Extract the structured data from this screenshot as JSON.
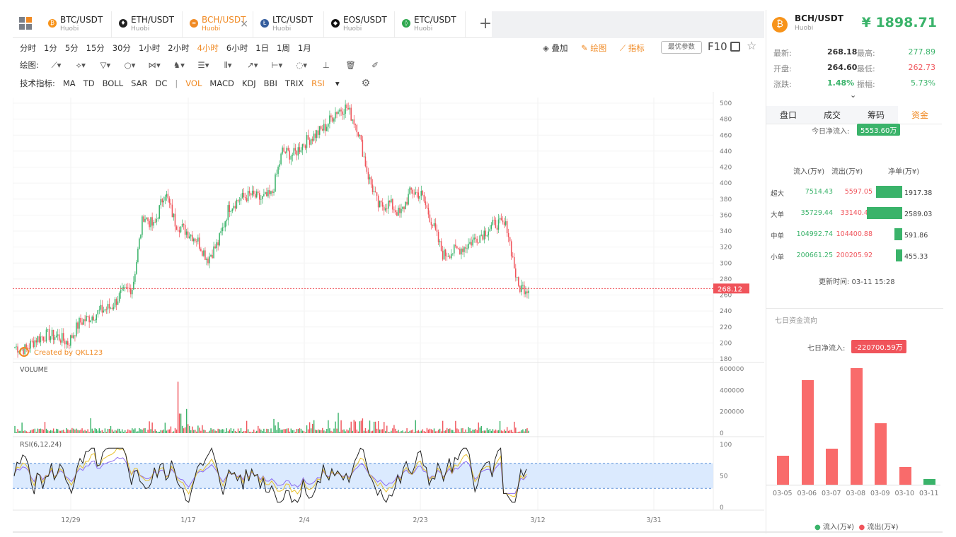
{
  "tabs": [
    {
      "symbol": "BTC/USDT",
      "exchange": "Huobi",
      "color": "#f7931a",
      "glyph": "₿"
    },
    {
      "symbol": "ETH/USDT",
      "exchange": "Huobi",
      "color": "#222222",
      "glyph": "♦"
    },
    {
      "symbol": "BCH/USDT",
      "exchange": "Huobi",
      "color": "#f08a24",
      "glyph": "∞",
      "active": true
    },
    {
      "symbol": "LTC/USDT",
      "exchange": "Huobi",
      "color": "#345d9d",
      "glyph": "Ł"
    },
    {
      "symbol": "EOS/USDT",
      "exchange": "Huobi",
      "color": "#111111",
      "glyph": "◆"
    },
    {
      "symbol": "ETC/USDT",
      "exchange": "Huobi",
      "color": "#2fa84f",
      "glyph": "◊"
    }
  ],
  "intervals": [
    "分时",
    "1分",
    "5分",
    "15分",
    "30分",
    "1小时",
    "2小时",
    "4小时",
    "6小时",
    "1日",
    "1周",
    "1月"
  ],
  "active_interval": "4小时",
  "toolbar_right": {
    "overlay": "叠加",
    "draw": "绘图",
    "indicator": "指标",
    "best_params": "最优参数",
    "f10": "F10"
  },
  "draw_label": "绘图:",
  "indicator_label": "技术指标:",
  "indicators": [
    "MA",
    "TD",
    "BOLL",
    "SAR",
    "DC",
    "|",
    "VOL",
    "MACD",
    "KDJ",
    "BBI",
    "TRIX",
    "RSI"
  ],
  "active_indicators": [
    "VOL",
    "RSI"
  ],
  "chart": {
    "price_ticks": [
      "500",
      "480",
      "460",
      "440",
      "420",
      "400",
      "380",
      "360",
      "340",
      "320",
      "300",
      "280",
      "260",
      "240",
      "220",
      "200",
      "180"
    ],
    "current_price_label": "268.12",
    "watermark": "Created by QKL123",
    "volume_label": "VOLUME",
    "volume_ticks": [
      "600000",
      "400000",
      "200000",
      "0"
    ],
    "rsi_label": "RSI(6,12,24)",
    "rsi_ticks": [
      "100",
      "50",
      "0"
    ],
    "date_ticks": [
      "12/29",
      "1/17",
      "2/4",
      "2/23",
      "3/12",
      "3/31"
    ]
  },
  "chart_data": {
    "type": "line",
    "title": "BCH/USDT",
    "series": [
      {
        "values": [
          195,
          192,
          205,
          210,
          208,
          200,
          225,
          232,
          240,
          245,
          262,
          270,
          360,
          345,
          390,
          350,
          340,
          330,
          305,
          325,
          370,
          380,
          385,
          380,
          385,
          440,
          435,
          450,
          460,
          470,
          490,
          495,
          470,
          410,
          370,
          375,
          360,
          390,
          385,
          350,
          310,
          315,
          320,
          330,
          340,
          350,
          345,
          270,
          268
        ]
      }
    ],
    "ylim": [
      180,
      500
    ]
  },
  "header": {
    "symbol": "BCH/USDT",
    "exchange": "Huobi",
    "price": "¥ 1898.71"
  },
  "stats": [
    {
      "label": "最新:",
      "value": "268.18",
      "label2": "最高:",
      "value2": "277.89"
    },
    {
      "label": "开盘:",
      "value": "264.60",
      "label2": "最低:",
      "value2": "262.73"
    },
    {
      "label": "涨跌:",
      "value": "1.48%",
      "label2": "振幅:",
      "value2": "5.73%"
    }
  ],
  "subtabs": [
    "盘口",
    "成交",
    "筹码",
    "资金"
  ],
  "active_subtab": "资金",
  "today_inflow_label": "今日净流入:",
  "today_inflow": "5553.60万",
  "flow_headers": [
    "流入(万¥)",
    "流出(万¥)",
    "净单(万¥)"
  ],
  "flow_rows": [
    {
      "label": "超大",
      "inflow": "7514.43",
      "outflow": "5597.05",
      "net": "1917.38",
      "net_val": 1917.38
    },
    {
      "label": "大单",
      "inflow": "35729.44",
      "outflow": "33140.41",
      "net": "2589.03",
      "net_val": 2589.03
    },
    {
      "label": "中单",
      "inflow": "104992.74",
      "outflow": "104400.88",
      "net": "591.86",
      "net_val": 591.86
    },
    {
      "label": "小单",
      "inflow": "200661.25",
      "outflow": "200205.92",
      "net": "455.33",
      "net_val": 455.33
    }
  ],
  "update_time": "更新时间: 03-11 15:28",
  "seven_day_title": "七日资金流向",
  "seven_day_label": "七日净流入:",
  "seven_day_value": "-220700.59万",
  "seven_day": [
    {
      "date": "03-05",
      "value": 0.25,
      "dir": "out"
    },
    {
      "date": "03-06",
      "value": 0.9,
      "dir": "out"
    },
    {
      "date": "03-07",
      "value": 0.31,
      "dir": "out"
    },
    {
      "date": "03-08",
      "value": 1.0,
      "dir": "out"
    },
    {
      "date": "03-09",
      "value": 0.53,
      "dir": "out"
    },
    {
      "date": "03-10",
      "value": 0.15,
      "dir": "out"
    },
    {
      "date": "03-11",
      "value": 0.05,
      "dir": "in"
    }
  ],
  "legend": {
    "in": "流入(万¥)",
    "out": "流出(万¥)"
  }
}
